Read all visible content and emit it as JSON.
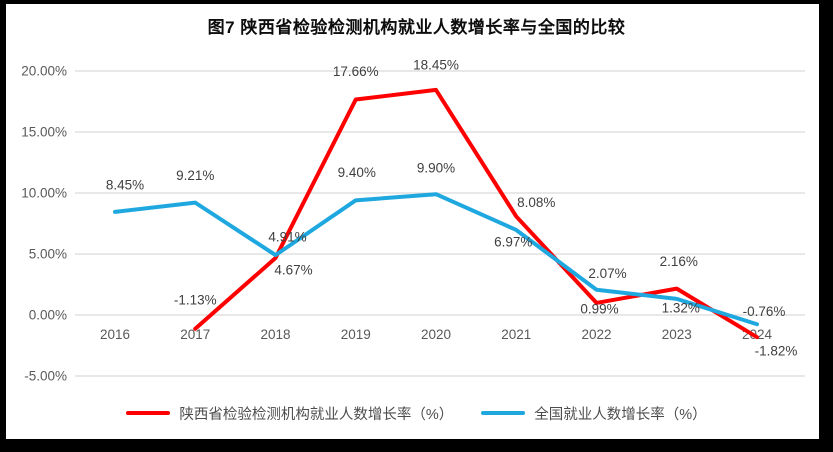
{
  "chart_data": {
    "type": "line",
    "title": "图7 陕西省检验检测机构就业人数增长率与全国的比较",
    "categories": [
      "2016",
      "2017",
      "2018",
      "2019",
      "2020",
      "2021",
      "2022",
      "2023",
      "2024"
    ],
    "series": [
      {
        "name": "陕西省检验检测机构就业人数增长率（%）",
        "color": "#FE0000",
        "values": [
          null,
          -1.13,
          4.67,
          17.66,
          18.45,
          8.08,
          0.99,
          2.16,
          -1.82
        ],
        "point_labels": [
          "",
          "-1.13%",
          "4.67%",
          "17.66%",
          "18.45%",
          "8.08%",
          "0.99%",
          "2.16%",
          "-1.82%"
        ]
      },
      {
        "name": "全国就业人数增长率（%）",
        "color": "#1FA8E0",
        "values": [
          8.45,
          9.21,
          4.91,
          9.4,
          9.9,
          6.97,
          2.07,
          1.32,
          -0.76
        ],
        "point_labels": [
          "8.45%",
          "9.21%",
          "4.91%",
          "9.40%",
          "9.90%",
          "6.97%",
          "2.07%",
          "1.32%",
          "-0.76%"
        ]
      }
    ],
    "y_ticks": [
      -5,
      0,
      5,
      10,
      15,
      20
    ],
    "y_tick_labels": [
      "-5.00%",
      "0.00%",
      "5.00%",
      "10.00%",
      "15.00%",
      "20.00%"
    ],
    "ylim": [
      -5,
      20
    ],
    "grid": "horizontal",
    "legend_position": "bottom"
  },
  "colors": {
    "grid": "#D9D9D9",
    "axis_text": "#595959",
    "data_label": "#3F3F3F",
    "frame": "#000000",
    "background": "#FFFFFF"
  }
}
